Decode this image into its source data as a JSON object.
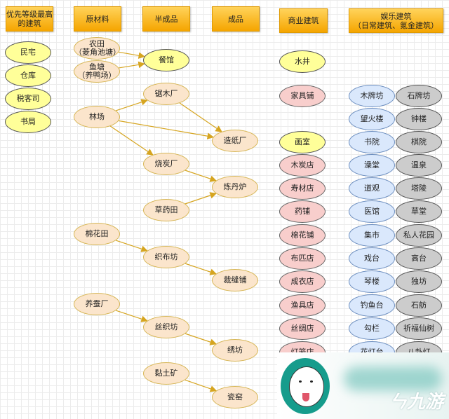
{
  "headers": [
    "优先等级最高\n的建筑",
    "原材料",
    "半成品",
    "成品",
    "商业建筑",
    "娱乐建筑\n（日常建筑、氪金建筑）"
  ],
  "priority": [
    "民宅",
    "仓库",
    "税客司",
    "书局"
  ],
  "raw_materials": [
    "农田\n（菱角池塘）",
    "鱼塘\n（养鸭场）",
    "林场",
    "棉花田",
    "养蚕厂"
  ],
  "semi_products": [
    "餐馆",
    "锯木厂",
    "烧炭厂",
    "草药田",
    "织布坊",
    "丝织坊",
    "黏土矿"
  ],
  "products": [
    "造纸厂",
    "炼丹炉",
    "裁缝铺",
    "绣坊",
    "瓷窑"
  ],
  "commerce": [
    {
      "label": "水井",
      "color": "yellow"
    },
    {
      "label": "家具铺",
      "color": "pink"
    },
    {
      "label": "画室",
      "color": "yellow"
    },
    {
      "label": "木炭店",
      "color": "pink"
    },
    {
      "label": "寿材店",
      "color": "pink"
    },
    {
      "label": "药铺",
      "color": "pink"
    },
    {
      "label": "棉花铺",
      "color": "pink"
    },
    {
      "label": "布匹店",
      "color": "pink"
    },
    {
      "label": "成衣店",
      "color": "pink"
    },
    {
      "label": "渔具店",
      "color": "pink"
    },
    {
      "label": "丝绸店",
      "color": "pink"
    },
    {
      "label": "灯笼店",
      "color": "pink"
    }
  ],
  "entertainment_daily": [
    "木牌坊",
    "望火楼",
    "书院",
    "澡堂",
    "道观",
    "医馆",
    "集市",
    "戏台",
    "琴楼",
    "钓鱼台",
    "勾栏",
    "花灯台"
  ],
  "entertainment_premium": [
    "石牌坊",
    "钟楼",
    "棋院",
    "温泉",
    "塔陵",
    "草堂",
    "私人花园",
    "高台",
    "独坊",
    "石舫",
    "祈福仙树",
    "八卦灯"
  ],
  "edges": [
    [
      "raw_materials.0",
      "semi_products.0"
    ],
    [
      "raw_materials.1",
      "semi_products.0"
    ],
    [
      "raw_materials.2",
      "semi_products.1"
    ],
    [
      "raw_materials.2",
      "products.0"
    ],
    [
      "raw_materials.2",
      "semi_products.2"
    ],
    [
      "semi_products.1",
      "products.0"
    ],
    [
      "semi_products.2",
      "products.1"
    ],
    [
      "semi_products.3",
      "products.1"
    ],
    [
      "raw_materials.3",
      "semi_products.4"
    ],
    [
      "semi_products.4",
      "products.2"
    ],
    [
      "raw_materials.4",
      "semi_products.5"
    ],
    [
      "semi_products.5",
      "products.3"
    ],
    [
      "semi_products.6",
      "products.4"
    ]
  ],
  "colors": {
    "header": "#f5a500",
    "edge": "#d6a520",
    "yellow": "#ffff99",
    "peach": "#fbe5cc",
    "pink": "#f8cecc",
    "blue": "#dae8fc",
    "gray": "#cccccc"
  },
  "watermark": {
    "logo": "九游"
  }
}
